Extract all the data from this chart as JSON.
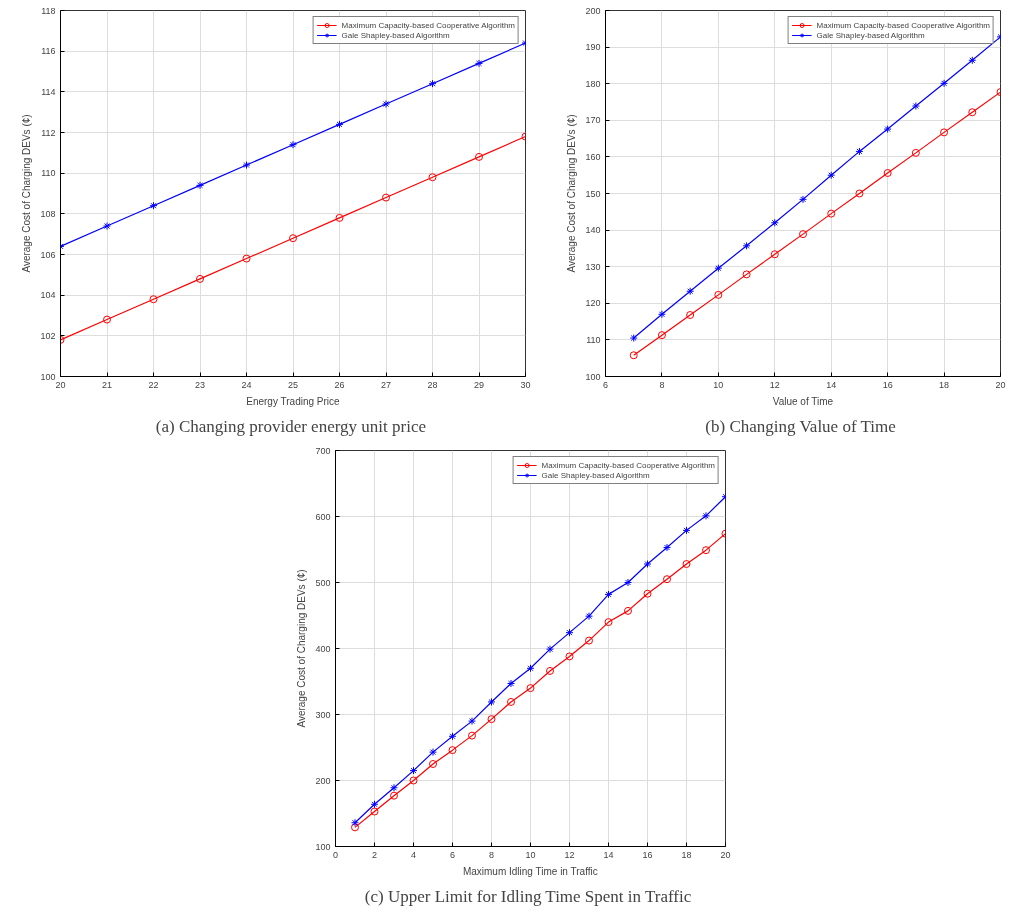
{
  "chart_data": [
    {
      "type": "line",
      "title": "(a)  Changing provider energy unit price",
      "xlabel": "Energy Trading Price",
      "ylabel": "Average Cost of Charging DEVs (¢)",
      "x": [
        20,
        21,
        22,
        23,
        24,
        25,
        26,
        27,
        28,
        29,
        30
      ],
      "xlim": [
        20,
        30
      ],
      "xticks": [
        20,
        21,
        22,
        23,
        24,
        25,
        26,
        27,
        28,
        29,
        30
      ],
      "ylim": [
        100,
        118
      ],
      "yticks": [
        100,
        102,
        104,
        106,
        108,
        110,
        112,
        114,
        116,
        118
      ],
      "grid": true,
      "legend": "top right",
      "series": [
        {
          "name": "Maximum Capacity-based Cooperative Algorithm",
          "color": "#ff0000",
          "marker": "circle",
          "values": [
            101.8,
            102.8,
            103.8,
            104.8,
            105.8,
            106.8,
            107.8,
            108.8,
            109.8,
            110.8,
            111.8
          ]
        },
        {
          "name": "Gale Shapley-based Algorithm",
          "color": "#0000ff",
          "marker": "cross",
          "values": [
            106.4,
            107.4,
            108.4,
            109.4,
            110.4,
            111.4,
            112.4,
            113.4,
            114.4,
            115.4,
            116.4
          ]
        }
      ]
    },
    {
      "type": "line",
      "title": "(b)  Changing Value of Time",
      "xlabel": "Value of Time",
      "ylabel": "Average Cost of Charging DEVs (¢)",
      "x": [
        7,
        8,
        9,
        10,
        11,
        12,
        13,
        14,
        15,
        16,
        17,
        18,
        19,
        20
      ],
      "xlim": [
        6,
        20
      ],
      "xticks": [
        6,
        8,
        10,
        12,
        14,
        16,
        18,
        20
      ],
      "ylim": [
        100,
        200
      ],
      "yticks": [
        100,
        110,
        120,
        130,
        140,
        150,
        160,
        170,
        180,
        190,
        200
      ],
      "grid": true,
      "legend": "top right",
      "series": [
        {
          "name": "Maximum Capacity-based Cooperative Algorithm",
          "color": "#ff0000",
          "marker": "circle",
          "values": [
            105.8,
            111.3,
            116.8,
            122.3,
            127.9,
            133.4,
            138.9,
            144.5,
            150,
            155.6,
            161.1,
            166.7,
            172.2,
            177.7
          ]
        },
        {
          "name": "Gale Shapley-based Algorithm",
          "color": "#0000ff",
          "marker": "cross",
          "values": [
            110.5,
            117,
            123.3,
            129.6,
            135.7,
            142,
            148.4,
            155,
            161.5,
            167.6,
            173.9,
            180.1,
            186.4,
            192.8
          ]
        }
      ]
    },
    {
      "type": "line",
      "title": "(c)  Upper Limit for Idling Time Spent in Traffic",
      "xlabel": "Maximum Idling Time in Traffic",
      "ylabel": "Average Cost of Charging DEVs (¢)",
      "x": [
        1,
        2,
        3,
        4,
        5,
        6,
        7,
        8,
        9,
        10,
        11,
        12,
        13,
        14,
        15,
        16,
        17,
        18,
        19,
        20
      ],
      "xlim": [
        0,
        20
      ],
      "xticks": [
        0,
        2,
        4,
        6,
        8,
        10,
        12,
        14,
        16,
        18,
        20
      ],
      "ylim": [
        100,
        700
      ],
      "yticks": [
        100,
        200,
        300,
        400,
        500,
        600,
        700
      ],
      "grid": true,
      "legend": "top right",
      "series": [
        {
          "name": "Maximum Capacity-based Cooperative Algorithm",
          "color": "#ff0000",
          "marker": "circle",
          "values": [
            129,
            153,
            177,
            200,
            225,
            246,
            268,
            293,
            319,
            340,
            366,
            388,
            412,
            440,
            457,
            483,
            505,
            528,
            549,
            574
          ]
        },
        {
          "name": "Gale Shapley-based Algorithm",
          "color": "#0000ff",
          "marker": "cross",
          "values": [
            136,
            164,
            189,
            215,
            243,
            267,
            290,
            319,
            347,
            370,
            399,
            424,
            449,
            482,
            500,
            528,
            553,
            579,
            601,
            630
          ]
        }
      ]
    }
  ]
}
